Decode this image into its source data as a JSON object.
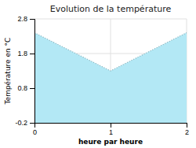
{
  "chart_data": {
    "type": "area",
    "title": "Evolution de la température",
    "xlabel": "heure par heure",
    "ylabel": "Température en °C",
    "x": [
      0,
      1,
      2
    ],
    "values": [
      2.4,
      1.3,
      2.4
    ],
    "color": "#b3e8f5",
    "line_style": "dotted",
    "xlim": [
      0,
      2
    ],
    "ylim": [
      -0.2,
      2.8
    ],
    "xticks": [
      0,
      1,
      2
    ],
    "yticks": [
      -0.2,
      0.8,
      1.8,
      2.8
    ],
    "grid": true
  }
}
